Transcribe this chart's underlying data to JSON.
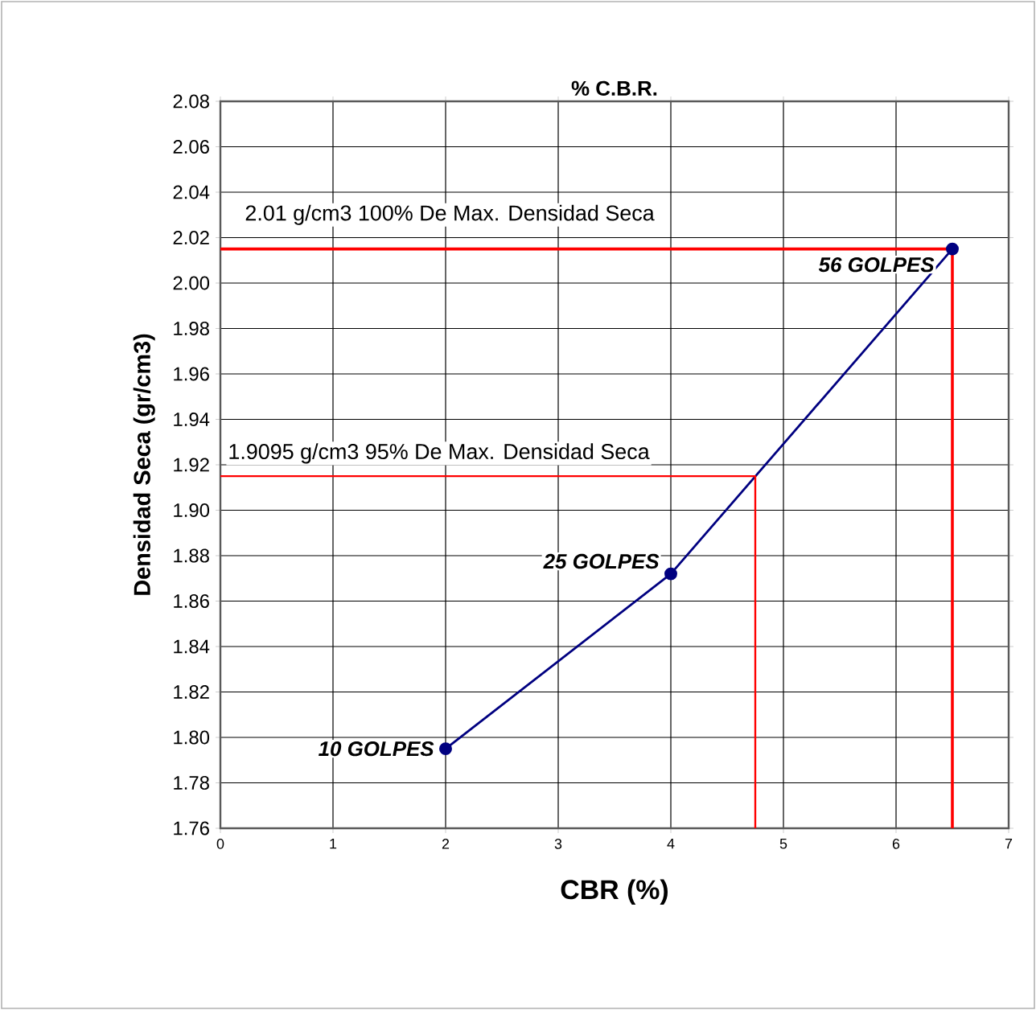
{
  "chart_data": {
    "type": "line",
    "title": "% C.B.R.",
    "xlabel": "CBR (%)",
    "ylabel": "Densidad Seca (gr/cm3)",
    "xlim": [
      0,
      7
    ],
    "xticks": [
      0,
      1,
      2,
      3,
      4,
      5,
      6,
      7
    ],
    "ylim": [
      1.76,
      2.08
    ],
    "yticks": [
      {
        "value": 1.76,
        "label": "1.76"
      },
      {
        "value": 1.78,
        "label": "1.78"
      },
      {
        "value": 1.8,
        "label": "1.80"
      },
      {
        "value": 1.82,
        "label": "1.82"
      },
      {
        "value": 1.84,
        "label": "1.84"
      },
      {
        "value": 1.86,
        "label": "1.86"
      },
      {
        "value": 1.88,
        "label": "1.88"
      },
      {
        "value": 1.9,
        "label": "1.90"
      },
      {
        "value": 1.92,
        "label": "1.92"
      },
      {
        "value": 1.94,
        "label": "1.94"
      },
      {
        "value": 1.96,
        "label": "1.96"
      },
      {
        "value": 1.98,
        "label": "1.98"
      },
      {
        "value": 2.0,
        "label": "2.00"
      },
      {
        "value": 2.02,
        "label": "2.02"
      },
      {
        "value": 2.04,
        "label": "2.04"
      },
      {
        "value": 2.06,
        "label": "2.06"
      },
      {
        "value": 2.08,
        "label": "2.08"
      }
    ],
    "grid": true,
    "marker": "circle",
    "line_style": "solid",
    "series": [
      {
        "color": "#000080",
        "x": [
          2,
          4,
          6.5
        ],
        "values": [
          1.795,
          1.872,
          2.015
        ]
      },
      {
        "color": "#ff0000",
        "marker": "none",
        "x": [
          0,
          6.5,
          6.5
        ],
        "values": [
          2.015,
          2.015,
          1.76
        ]
      },
      {
        "color": "#ff0000",
        "marker": "none",
        "x": [
          0,
          4.75,
          4.75
        ],
        "values": [
          1.915,
          1.915,
          1.76
        ]
      }
    ],
    "annotations": [
      "2.01 g/cm3 100% De Max. Densidad Seca",
      "1.9095 g/cm3 95% De Max. Densidad Seca",
      {
        "text": "10 GOLPES",
        "x": 2,
        "y": 1.795
      },
      {
        "text": "25 GOLPES",
        "x": 4,
        "y": 1.872
      },
      {
        "text": "56 GOLPES",
        "x": 6.5,
        "y": 2.015
      }
    ]
  }
}
